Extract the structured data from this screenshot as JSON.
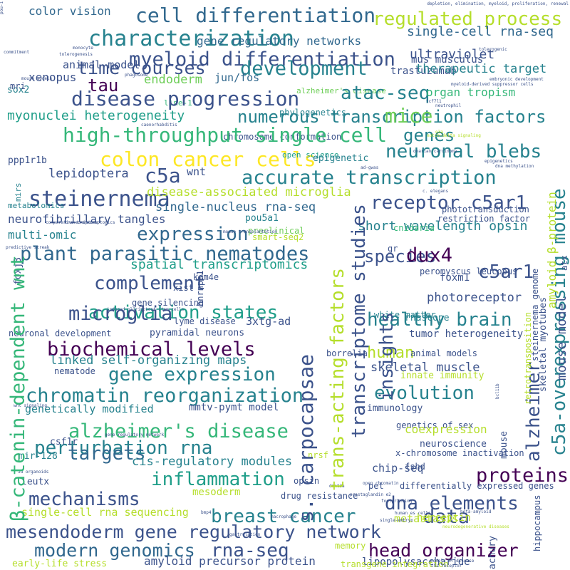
{
  "word_cloud": {
    "palette": {
      "dark_purple": "#440154",
      "indigo": "#3b528b",
      "slate_blue": "#31688e",
      "teal_blue": "#26828e",
      "teal_green": "#1f9e89",
      "green": "#35b779",
      "lime": "#6ece58",
      "yellow_green": "#b5de2b",
      "yellow": "#fde725"
    },
    "words": [
      {
        "text": "color vision",
        "color": "#31688e",
        "size": 16
      },
      {
        "text": "cell differentiation",
        "color": "#31688e",
        "size": 28
      },
      {
        "text": "regulated process",
        "color": "#b5de2b",
        "size": 26
      },
      {
        "text": "characterization",
        "color": "#26828e",
        "size": 30
      },
      {
        "text": "gene regulatory networks",
        "color": "#31688e",
        "size": 16
      },
      {
        "text": "single-cell rna-seq",
        "color": "#31688e",
        "size": 18
      },
      {
        "text": "myeloid differentiation",
        "color": "#3b528b",
        "size": 27
      },
      {
        "text": "animal model",
        "color": "#3b528b",
        "size": 15
      },
      {
        "text": "mus musculus",
        "color": "#3b528b",
        "size": 14
      },
      {
        "text": "trastuzumab",
        "color": "#3b528b",
        "size": 14
      },
      {
        "text": "ultraviolet",
        "color": "#3b528b",
        "size": 18
      },
      {
        "text": "time courses",
        "color": "#3b528b",
        "size": 25
      },
      {
        "text": "development",
        "color": "#26828e",
        "size": 27
      },
      {
        "text": "xenopus",
        "color": "#3b528b",
        "size": 16
      },
      {
        "text": "alzheimer's disease",
        "color": "#6ece58",
        "size": 11
      },
      {
        "text": "therapeutic target",
        "color": "#26828e",
        "size": 17
      },
      {
        "text": "sox2",
        "color": "#26828e",
        "size": 13
      },
      {
        "text": "tau",
        "color": "#440154",
        "size": 24
      },
      {
        "text": "endoderm",
        "color": "#6ece58",
        "size": 17
      },
      {
        "text": "jun/fos",
        "color": "#31688e",
        "size": 15
      },
      {
        "text": "line-1",
        "color": "#35b779",
        "size": 11
      },
      {
        "text": "disease progression",
        "color": "#3b528b",
        "size": 28
      },
      {
        "text": "atac-seq",
        "color": "#26828e",
        "size": 26
      },
      {
        "text": "organ tropism",
        "color": "#35b779",
        "size": 16
      },
      {
        "text": "phylogenetics",
        "color": "#26828e",
        "size": 12
      },
      {
        "text": "numerous transcription factors",
        "color": "#26828e",
        "size": 24
      },
      {
        "text": "myonuclei heterogeneity",
        "color": "#1f9e89",
        "size": 18
      },
      {
        "text": "mice",
        "color": "#6ece58",
        "size": 28
      },
      {
        "text": "chromosome conformation",
        "color": "#3b528b",
        "size": 12
      },
      {
        "text": "genes",
        "color": "#26828e",
        "size": 24
      },
      {
        "text": "high-throughput single cell",
        "color": "#35b779",
        "size": 28
      },
      {
        "text": "colon cancer cells",
        "color": "#fde725",
        "size": 28
      },
      {
        "text": "open science",
        "color": "#1f9e89",
        "size": 11
      },
      {
        "text": "neuronal blebs",
        "color": "#26828e",
        "size": 26
      },
      {
        "text": "ppp1r1b",
        "color": "#3b528b",
        "size": 13
      },
      {
        "text": "epigenetic",
        "color": "#26828e",
        "size": 13
      },
      {
        "text": "c5a",
        "color": "#3b528b",
        "size": 28
      },
      {
        "text": "wnt",
        "color": "#3b528b",
        "size": 15
      },
      {
        "text": "lepidoptera",
        "color": "#3b528b",
        "size": 17
      },
      {
        "text": "accurate transcription",
        "color": "#26828e",
        "size": 27
      },
      {
        "text": "steinernema",
        "color": "#3b528b",
        "size": 30
      },
      {
        "text": "disease-associated microglia",
        "color": "#b5de2b",
        "size": 17
      },
      {
        "text": "metabolomics",
        "color": "#26828e",
        "size": 11
      },
      {
        "text": "receptor c5ar1",
        "color": "#3b528b",
        "size": 26
      },
      {
        "text": "phototransduction",
        "color": "#3b528b",
        "size": 12
      },
      {
        "text": "single-nucleus rna-seq",
        "color": "#31688e",
        "size": 17
      },
      {
        "text": "neurofibrillary tangles",
        "color": "#3b528b",
        "size": 16
      },
      {
        "text": "pou5a1",
        "color": "#26828e",
        "size": 13
      },
      {
        "text": "restriction factor",
        "color": "#3b528b",
        "size": 12
      },
      {
        "text": "expression",
        "color": "#31688e",
        "size": 26
      },
      {
        "text": "short wavelength opsin",
        "color": "#26828e",
        "size": 18
      },
      {
        "text": "multi-omic",
        "color": "#26828e",
        "size": 16
      },
      {
        "text": "preclinical",
        "color": "#6ece58",
        "size": 12
      },
      {
        "text": "smart-seq2",
        "color": "#b5de2b",
        "size": 12
      },
      {
        "text": "plant parasitic nematodes",
        "color": "#31688e",
        "size": 27
      },
      {
        "text": "species",
        "color": "#3b528b",
        "size": 24
      },
      {
        "text": "dux4",
        "color": "#440154",
        "size": 27
      },
      {
        "text": "spatial transcriptomics",
        "color": "#1f9e89",
        "size": 18
      },
      {
        "text": "c5ar1",
        "color": "#3b528b",
        "size": 26
      },
      {
        "text": "complement",
        "color": "#3b528b",
        "size": 26
      },
      {
        "text": "peromyscus leucopus",
        "color": "#3b528b",
        "size": 12
      },
      {
        "text": "foxm1",
        "color": "#3b528b",
        "size": 14
      },
      {
        "text": "activation states",
        "color": "#1f9e89",
        "size": 26
      },
      {
        "text": "photoreceptor",
        "color": "#3b528b",
        "size": 17
      },
      {
        "text": "microglia",
        "color": "#3b528b",
        "size": 27
      },
      {
        "text": "white matter",
        "color": "#26828e",
        "size": 12
      },
      {
        "text": "healthy brain",
        "color": "#26828e",
        "size": 26
      },
      {
        "text": "rnascope",
        "color": "#26828e",
        "size": 13
      },
      {
        "text": "lyme disease",
        "color": "#3b528b",
        "size": 12
      },
      {
        "text": "3xtg-ad",
        "color": "#3b528b",
        "size": 15
      },
      {
        "text": "neuronal development",
        "color": "#3b528b",
        "size": 12
      },
      {
        "text": "pyramidal neurons",
        "color": "#3b528b",
        "size": 13
      },
      {
        "text": "tumor heterogeneity",
        "color": "#3b528b",
        "size": 14
      },
      {
        "text": "biochemical levels",
        "color": "#440154",
        "size": 27
      },
      {
        "text": "human",
        "color": "#b5de2b",
        "size": 22
      },
      {
        "text": "borrelia",
        "color": "#3b528b",
        "size": 12
      },
      {
        "text": "animal models",
        "color": "#3b528b",
        "size": 12
      },
      {
        "text": "linked self-organizing maps",
        "color": "#26828e",
        "size": 17
      },
      {
        "text": "skeletal muscle",
        "color": "#3b528b",
        "size": 17
      },
      {
        "text": "nematode",
        "color": "#3b528b",
        "size": 12
      },
      {
        "text": "gene expression",
        "color": "#26828e",
        "size": 26
      },
      {
        "text": "innate immunity",
        "color": "#b5de2b",
        "size": 13
      },
      {
        "text": "chromatin reorganization",
        "color": "#26828e",
        "size": 27
      },
      {
        "text": "evolution",
        "color": "#26828e",
        "size": 26
      },
      {
        "text": "genetically modified",
        "color": "#26828e",
        "size": 15
      },
      {
        "text": "mmtv-pymt model",
        "color": "#3b528b",
        "size": 14
      },
      {
        "text": "immunology",
        "color": "#3b528b",
        "size": 13
      },
      {
        "text": "alzheimer's disease",
        "color": "#35b779",
        "size": 27
      },
      {
        "text": "genetics of sex",
        "color": "#3b528b",
        "size": 12
      },
      {
        "text": "perturbation rna",
        "color": "#26828e",
        "size": 26
      },
      {
        "text": "coexpression",
        "color": "#b5de2b",
        "size": 16
      },
      {
        "text": "targets",
        "color": "#31688e",
        "size": 26
      },
      {
        "text": "cis-regulatory modules",
        "color": "#26828e",
        "size": 17
      },
      {
        "text": "neuroscience",
        "color": "#3b528b",
        "size": 13
      },
      {
        "text": "x-chromosome inactivation",
        "color": "#3b528b",
        "size": 12
      },
      {
        "text": "inflammation",
        "color": "#1f9e89",
        "size": 26
      },
      {
        "text": "proteins",
        "color": "#440154",
        "size": 27
      },
      {
        "text": "chip-seq",
        "color": "#3b528b",
        "size": 15
      },
      {
        "text": "mechanisms",
        "color": "#3b528b",
        "size": 26
      },
      {
        "text": "opsin",
        "color": "#3b528b",
        "size": 12
      },
      {
        "text": "differentially expressed genes",
        "color": "#3b528b",
        "size": 12
      },
      {
        "text": "dna elements",
        "color": "#3b528b",
        "size": 26
      },
      {
        "text": "single-cell rna sequencing",
        "color": "#b5de2b",
        "size": 15
      },
      {
        "text": "breast cancer",
        "color": "#26828e",
        "size": 26
      },
      {
        "text": "data",
        "color": "#3b528b",
        "size": 27
      },
      {
        "text": "mesendoderm gene regulatory network",
        "color": "#3b528b",
        "size": 25
      },
      {
        "text": "metastasis",
        "color": "#b5de2b",
        "size": 15
      },
      {
        "text": "herceptin",
        "color": "#b5de2b",
        "size": 14
      },
      {
        "text": "modern genomics",
        "color": "#31688e",
        "size": 25
      },
      {
        "text": "rna-seq",
        "color": "#3b528b",
        "size": 26
      },
      {
        "text": "head organizer",
        "color": "#440154",
        "size": 25
      },
      {
        "text": "early-life stress",
        "color": "#b5de2b",
        "size": 13
      },
      {
        "text": "amyloid precursor protein",
        "color": "#3b528b",
        "size": 16
      },
      {
        "text": "lipopolysaccharide",
        "color": "#3b528b",
        "size": 14
      },
      {
        "text": "transgene integration",
        "color": "#b5de2b",
        "size": 12
      },
      {
        "text": "achury",
        "color": "#3b528b",
        "size": 13,
        "vertical": true
      },
      {
        "text": "hippocampus",
        "color": "#3b528b",
        "size": 12,
        "vertical": true
      },
      {
        "text": "csf1r",
        "color": "#3b528b",
        "size": 13
      },
      {
        "text": "leutx",
        "color": "#3b528b",
        "size": 13
      },
      {
        "text": "mesoderm",
        "color": "#b5de2b",
        "size": 14
      },
      {
        "text": "mir-128",
        "color": "#26828e",
        "size": 13
      },
      {
        "text": "nrsf",
        "color": "#b5de2b",
        "size": 12
      },
      {
        "text": "fshd",
        "color": "#3b528b",
        "size": 12
      },
      {
        "text": "drug resistance",
        "color": "#3b528b",
        "size": 12
      },
      {
        "text": "memory",
        "color": "#b5de2b",
        "size": 12
      },
      {
        "text": "xist",
        "color": "#3b528b",
        "size": 12
      },
      {
        "text": "kdm4e",
        "color": "#3b528b",
        "size": 12
      },
      {
        "text": "foxj3",
        "color": "#3b528b",
        "size": 13,
        "vertical": true
      },
      {
        "text": "gene silencing",
        "color": "#3b528b",
        "size": 12
      },
      {
        "text": "cnidaria",
        "color": "#35b779",
        "size": 12
      },
      {
        "text": "gr",
        "color": "#3b528b",
        "size": 12
      },
      {
        "text": "mri",
        "color": "#3b528b",
        "size": 12
      },
      {
        "text": "mirs",
        "color": "#26828e",
        "size": 11,
        "vertical": true
      },
      {
        "text": "mouse",
        "color": "#3b528b",
        "size": 13,
        "vertical": true
      },
      {
        "text": "pet",
        "color": "#3b528b",
        "size": 12
      },
      {
        "text": "dmnt3a",
        "color": "#3b528b",
        "size": 6
      },
      {
        "text": "footprinting",
        "color": "#3b528b",
        "size": 6
      },
      {
        "text": "macrophage",
        "color": "#3b528b",
        "size": 6
      },
      {
        "text": "beta-amyloid",
        "color": "#3b528b",
        "size": 6
      },
      {
        "text": "gastrulation",
        "color": "#3b528b",
        "size": 6
      },
      {
        "text": "neurodegenerative diseases",
        "color": "#b5de2b",
        "size": 6
      },
      {
        "text": "bmp4",
        "color": "#3b528b",
        "size": 6
      },
      {
        "text": "human es cells",
        "color": "#3b528b",
        "size": 6
      },
      {
        "text": "single-embryo",
        "color": "#3b528b",
        "size": 6
      },
      {
        "text": "induced pluripotent stem cells",
        "color": "#3b528b",
        "size": 6
      },
      {
        "text": "transcriptome",
        "color": "#3b528b",
        "size": 6
      },
      {
        "text": "mouse transplantation",
        "color": "#3b528b",
        "size": 6
      },
      {
        "text": "comparative transcriptomics",
        "color": "#3b528b",
        "size": 6
      },
      {
        "text": "caenorhabditis",
        "color": "#3b528b",
        "size": 6
      },
      {
        "text": "c. elegans",
        "color": "#3b528b",
        "size": 6
      },
      {
        "text": "ad-gwas",
        "color": "#3b528b",
        "size": 6
      },
      {
        "text": "dna methylation",
        "color": "#3b528b",
        "size": 6
      },
      {
        "text": "epigenetics",
        "color": "#3b528b",
        "size": 6
      },
      {
        "text": "ovarian carcinoma",
        "color": "#3b528b",
        "size": 6
      },
      {
        "text": "notch-delta signaling",
        "color": "#b5de2b",
        "size": 6
      },
      {
        "text": "neutrophil",
        "color": "#3b528b",
        "size": 6
      },
      {
        "text": "myeloid-derived suppressor cells",
        "color": "#3b528b",
        "size": 6
      },
      {
        "text": "embryonic development",
        "color": "#3b528b",
        "size": 6
      },
      {
        "text": "depletion, elimination, myeloid, proliferation, renewal",
        "color": "#3b528b",
        "size": 6
      },
      {
        "text": "tolerogenic",
        "color": "#3b528b",
        "size": 6
      },
      {
        "text": "commitment",
        "color": "#3b528b",
        "size": 6
      },
      {
        "text": "tolerogenesis",
        "color": "#3b528b",
        "size": 6
      },
      {
        "text": "monocyte",
        "color": "#3b528b",
        "size": 6
      },
      {
        "text": "phagosome",
        "color": "#3b528b",
        "size": 6
      },
      {
        "text": "mouse models",
        "color": "#3b528b",
        "size": 6
      },
      {
        "text": "tcf7l1",
        "color": "#3b528b",
        "size": 6
      },
      {
        "text": "c5a receptor",
        "color": "#3b528b",
        "size": 6
      },
      {
        "text": "models of disease",
        "color": "#3b528b",
        "size": 6
      },
      {
        "text": "gene regulatory network",
        "color": "#3b528b",
        "size": 6
      },
      {
        "text": "wnt signaling",
        "color": "#3b528b",
        "size": 6
      },
      {
        "text": "3d organoids",
        "color": "#3b528b",
        "size": 6
      },
      {
        "text": "prostaglandin e2",
        "color": "#3b528b",
        "size": 6
      },
      {
        "text": "open chromatin",
        "color": "#3b528b",
        "size": 6
      },
      {
        "text": "e3a",
        "color": "#b5de2b",
        "size": 6
      },
      {
        "text": "predictive streak",
        "color": "#3b528b",
        "size": 6
      },
      {
        "text": "s. carpocapsae",
        "color": "#3b528b",
        "size": 28,
        "vertical": true
      },
      {
        "text": "trans-acting factors",
        "color": "#b5de2b",
        "size": 26,
        "vertical": true
      },
      {
        "text": "transcriptome studies",
        "color": "#3b528b",
        "size": 26,
        "vertical": true
      },
      {
        "text": "insights",
        "color": "#3b528b",
        "size": 26,
        "vertical": true
      },
      {
        "text": "β-catenin-dependent wnt",
        "color": "#35b779",
        "size": 27,
        "vertical": true
      },
      {
        "text": "alzheimer",
        "color": "#3b528b",
        "size": 26,
        "vertical": true
      },
      {
        "text": "c5a-overexpressing mouse",
        "color": "#26828e",
        "size": 26,
        "vertical": true
      },
      {
        "text": "mouse model",
        "color": "#3b528b",
        "size": 18,
        "vertical": true
      },
      {
        "text": "amyloid β-protein",
        "color": "#b5de2b",
        "size": 16,
        "vertical": true
      },
      {
        "text": "skeletal myotubes",
        "color": "#3b528b",
        "size": 13,
        "vertical": true
      },
      {
        "text": "steinernema genome",
        "color": "#3b528b",
        "size": 12,
        "vertical": true
      },
      {
        "text": "retrotransposition",
        "color": "#b5de2b",
        "size": 12,
        "vertical": true
      },
      {
        "text": "hnrnpa1",
        "color": "#3b528b",
        "size": 12,
        "vertical": true
      },
      {
        "text": "atx",
        "color": "#3b528b",
        "size": 12,
        "vertical": true
      },
      {
        "text": "bcl11b",
        "color": "#3b528b",
        "size": 6,
        "vertical": true
      },
      {
        "text": "pou-1",
        "color": "#3b528b",
        "size": 6,
        "vertical": true
      }
    ]
  }
}
